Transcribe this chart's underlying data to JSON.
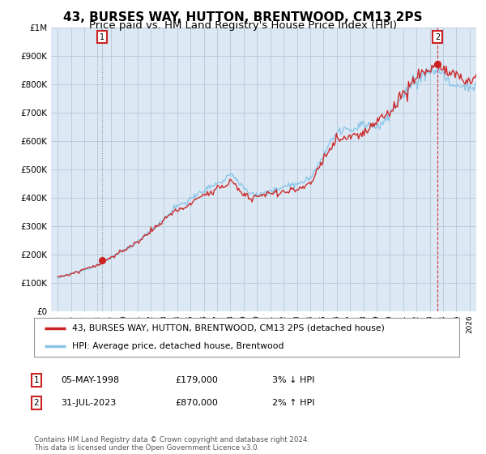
{
  "title": "43, BURSES WAY, HUTTON, BRENTWOOD, CM13 2PS",
  "subtitle": "Price paid vs. HM Land Registry's House Price Index (HPI)",
  "ylim": [
    0,
    1000000
  ],
  "yticks": [
    0,
    100000,
    200000,
    300000,
    400000,
    500000,
    600000,
    700000,
    800000,
    900000,
    1000000
  ],
  "ytick_labels": [
    "£0",
    "£100K",
    "£200K",
    "£300K",
    "£400K",
    "£500K",
    "£600K",
    "£700K",
    "£800K",
    "£900K",
    "£1M"
  ],
  "xlim_start": 1994.5,
  "xlim_end": 2026.5,
  "hpi_color": "#89c4e8",
  "price_color": "#cc2222",
  "chart_bg": "#dce9f5",
  "sale1_year": 1998.35,
  "sale1_price": 179000,
  "sale2_year": 2023.58,
  "sale2_price": 870000,
  "legend_label1": "43, BURSES WAY, HUTTON, BRENTWOOD, CM13 2PS (detached house)",
  "legend_label2": "HPI: Average price, detached house, Brentwood",
  "table_row1": [
    "1",
    "05-MAY-1998",
    "£179,000",
    "3% ↓ HPI"
  ],
  "table_row2": [
    "2",
    "31-JUL-2023",
    "£870,000",
    "2% ↑ HPI"
  ],
  "footer": "Contains HM Land Registry data © Crown copyright and database right 2024.\nThis data is licensed under the Open Government Licence v3.0.",
  "background_color": "#ffffff",
  "grid_color": "#bbccdd",
  "title_fontsize": 11,
  "subtitle_fontsize": 9.5
}
